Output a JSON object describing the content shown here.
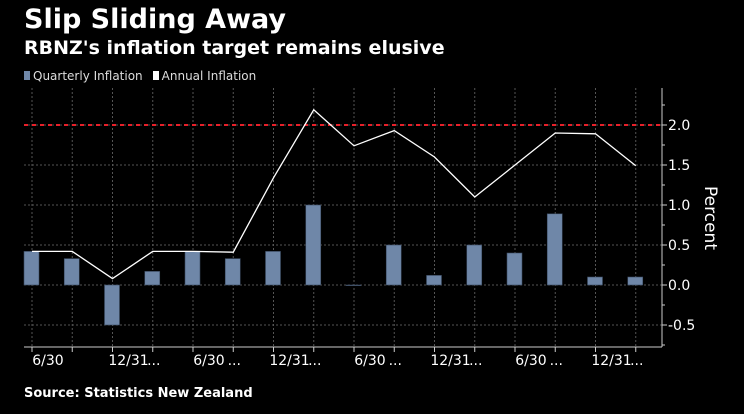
{
  "title": "Slip Sliding Away",
  "subtitle": "RBNZ's inflation target remains elusive",
  "source": "Source: Statistics New Zealand",
  "colors": {
    "bar": "#6f87a8",
    "line": "#ffffff",
    "target": "#e8202a",
    "grid": "#555555"
  },
  "chart_data": {
    "type": "bar",
    "title": "Slip Sliding Away",
    "ylabel": "Percent",
    "xlabel": "",
    "ylim": [
      -0.77,
      2.45
    ],
    "yticks": [
      "-0.5",
      "0.0",
      "0.5",
      "1.0",
      "1.5",
      "2.0"
    ],
    "ytick_values": [
      -0.5,
      0,
      0.5,
      1.0,
      1.5,
      2.0
    ],
    "target_line": 2.0,
    "legend": [
      "Quarterly Inflation",
      "Annual Inflation"
    ],
    "legend_position": "top-left",
    "grid": true,
    "categories": [
      "6/30",
      "",
      "12/31",
      "...",
      "6/30",
      "...",
      "12/31",
      "...",
      "6/30",
      "...",
      "12/31",
      "...",
      "6/30",
      "...",
      "12/31",
      "..."
    ],
    "series": [
      {
        "name": "Quarterly Inflation",
        "type": "bar",
        "values": [
          0.42,
          0.33,
          -0.5,
          0.17,
          0.42,
          0.33,
          0.42,
          1.0,
          0.0,
          0.5,
          0.12,
          0.5,
          0.4,
          0.89,
          0.1,
          0.1
        ]
      },
      {
        "name": "Annual Inflation",
        "type": "line",
        "values": [
          0.42,
          0.42,
          0.08,
          0.42,
          0.42,
          0.41,
          1.34,
          2.19,
          1.74,
          1.93,
          1.6,
          1.1,
          1.5,
          1.9,
          1.89,
          1.49
        ]
      }
    ]
  }
}
